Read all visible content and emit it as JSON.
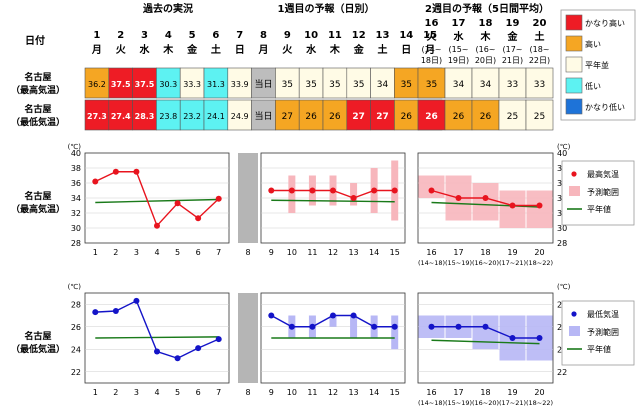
{
  "header": {
    "date_label": "日付",
    "section_past": "過去の実況",
    "section_week1": "1週目の予報（日別）",
    "section_week2": "2週目の予報（5日間平均）"
  },
  "days": [
    {
      "num": "1",
      "dow": "月",
      "color": "#000000"
    },
    {
      "num": "2",
      "dow": "火",
      "color": "#000000"
    },
    {
      "num": "3",
      "dow": "水",
      "color": "#000000"
    },
    {
      "num": "4",
      "dow": "木",
      "color": "#000000"
    },
    {
      "num": "5",
      "dow": "金",
      "color": "#000000"
    },
    {
      "num": "6",
      "dow": "土",
      "color": "#000000"
    },
    {
      "num": "7",
      "dow": "日",
      "color": "#000000"
    },
    {
      "num": "8",
      "dow": "月",
      "color": "#000000"
    },
    {
      "num": "9",
      "dow": "火",
      "color": "#000000"
    },
    {
      "num": "10",
      "dow": "水",
      "color": "#000000"
    },
    {
      "num": "11",
      "dow": "木",
      "color": "#000000"
    },
    {
      "num": "12",
      "dow": "金",
      "color": "#000000"
    },
    {
      "num": "13",
      "dow": "土",
      "color": "#000000"
    },
    {
      "num": "14",
      "dow": "日",
      "color": "#000000"
    },
    {
      "num": "15",
      "dow": "月",
      "color": "#000000"
    }
  ],
  "week2_days": [
    {
      "num": "16",
      "dow": "火",
      "range1": "(14~",
      "range2": "18日)"
    },
    {
      "num": "17",
      "dow": "水",
      "range1": "(15~",
      "range2": "19日)"
    },
    {
      "num": "18",
      "dow": "木",
      "range1": "(16~",
      "range2": "20日)"
    },
    {
      "num": "19",
      "dow": "金",
      "range1": "(17~",
      "range2": "21日)"
    },
    {
      "num": "20",
      "dow": "土",
      "range1": "(18~",
      "range2": "22日)"
    }
  ],
  "rows": [
    {
      "label1": "名古屋",
      "label2": "（最高気温）",
      "cells": [
        {
          "text": "36.2",
          "bg": "#f5a623",
          "bold": false,
          "color": "#000000"
        },
        {
          "text": "37.5",
          "bg": "#ee1c25",
          "bold": true,
          "color": "#ffffff"
        },
        {
          "text": "37.5",
          "bg": "#ee1c25",
          "bold": true,
          "color": "#ffffff"
        },
        {
          "text": "30.3",
          "bg": "#5df2f2",
          "bold": false,
          "color": "#000000"
        },
        {
          "text": "33.3",
          "bg": "#fffbe6",
          "bold": false,
          "color": "#000000"
        },
        {
          "text": "31.3",
          "bg": "#5df2f2",
          "bold": false,
          "color": "#000000"
        },
        {
          "text": "33.9",
          "bg": "#fffbe6",
          "bold": false,
          "color": "#000000"
        },
        {
          "text": "当日",
          "bg": "#bdbdbd",
          "bold": false,
          "color": "#000000"
        },
        {
          "text": "35",
          "bg": "#fffbe6",
          "bold": false,
          "color": "#000000"
        },
        {
          "text": "35",
          "bg": "#fffbe6",
          "bold": false,
          "color": "#000000"
        },
        {
          "text": "35",
          "bg": "#fffbe6",
          "bold": false,
          "color": "#000000"
        },
        {
          "text": "35",
          "bg": "#fffbe6",
          "bold": false,
          "color": "#000000"
        },
        {
          "text": "34",
          "bg": "#fffbe6",
          "bold": false,
          "color": "#000000"
        },
        {
          "text": "35",
          "bg": "#f5a623",
          "bold": false,
          "color": "#000000"
        },
        {
          "text": "35",
          "bg": "#f5a623",
          "bold": false,
          "color": "#000000"
        }
      ],
      "week2": [
        {
          "text": "35",
          "bg": "#f5a623",
          "bold": false,
          "color": "#000000"
        },
        {
          "text": "34",
          "bg": "#fffbe6",
          "bold": false,
          "color": "#000000"
        },
        {
          "text": "34",
          "bg": "#fffbe6",
          "bold": false,
          "color": "#000000"
        },
        {
          "text": "33",
          "bg": "#fffbe6",
          "bold": false,
          "color": "#000000"
        },
        {
          "text": "33",
          "bg": "#fffbe6",
          "bold": false,
          "color": "#000000"
        }
      ]
    },
    {
      "label1": "名古屋",
      "label2": "（最低気温）",
      "cells": [
        {
          "text": "27.3",
          "bg": "#ee1c25",
          "bold": true,
          "color": "#ffffff"
        },
        {
          "text": "27.4",
          "bg": "#ee1c25",
          "bold": true,
          "color": "#ffffff"
        },
        {
          "text": "28.3",
          "bg": "#ee1c25",
          "bold": true,
          "color": "#ffffff"
        },
        {
          "text": "23.8",
          "bg": "#5df2f2",
          "bold": false,
          "color": "#000000"
        },
        {
          "text": "23.2",
          "bg": "#5df2f2",
          "bold": false,
          "color": "#000000"
        },
        {
          "text": "24.1",
          "bg": "#5df2f2",
          "bold": false,
          "color": "#000000"
        },
        {
          "text": "24.9",
          "bg": "#fffbe6",
          "bold": false,
          "color": "#000000"
        },
        {
          "text": "当日",
          "bg": "#bdbdbd",
          "bold": false,
          "color": "#000000"
        },
        {
          "text": "27",
          "bg": "#f5a623",
          "bold": false,
          "color": "#000000"
        },
        {
          "text": "26",
          "bg": "#f5a623",
          "bold": false,
          "color": "#000000"
        },
        {
          "text": "26",
          "bg": "#f5a623",
          "bold": false,
          "color": "#000000"
        },
        {
          "text": "27",
          "bg": "#ee1c25",
          "bold": true,
          "color": "#ffffff"
        },
        {
          "text": "27",
          "bg": "#ee1c25",
          "bold": true,
          "color": "#ffffff"
        },
        {
          "text": "26",
          "bg": "#f5a623",
          "bold": false,
          "color": "#000000"
        },
        {
          "text": "26",
          "bg": "#f5a623",
          "bold": false,
          "color": "#000000"
        }
      ],
      "week2": [
        {
          "text": "26",
          "bg": "#ee1c25",
          "bold": true,
          "color": "#ffffff"
        },
        {
          "text": "26",
          "bg": "#f5a623",
          "bold": false,
          "color": "#000000"
        },
        {
          "text": "26",
          "bg": "#f5a623",
          "bold": false,
          "color": "#000000"
        },
        {
          "text": "25",
          "bg": "#fffbe6",
          "bold": false,
          "color": "#000000"
        },
        {
          "text": "25",
          "bg": "#fffbe6",
          "bold": false,
          "color": "#000000"
        }
      ]
    }
  ],
  "category_legend": [
    {
      "label": "かなり高い",
      "color": "#ee1c25"
    },
    {
      "label": "高い",
      "color": "#f5a623"
    },
    {
      "label": "平年並",
      "color": "#fffbe6"
    },
    {
      "label": "低い",
      "color": "#5df2f2"
    },
    {
      "label": "かなり低い",
      "color": "#1e73d8"
    }
  ],
  "chart_data": [
    {
      "type": "line",
      "label1": "名古屋",
      "label2": "（最高気温）",
      "unit": "(℃)",
      "ylim": [
        28,
        40
      ],
      "yticks": [
        28,
        30,
        32,
        34,
        36,
        38,
        40
      ],
      "color": "#e8141e",
      "band_color": "#f7b6bc",
      "normal_color": "#1a7a1a",
      "past": {
        "x": [
          1,
          2,
          3,
          4,
          5,
          6,
          7
        ],
        "y": [
          36.2,
          37.5,
          37.5,
          30.3,
          33.3,
          31.3,
          33.9
        ]
      },
      "forecast": {
        "x": [
          9,
          10,
          11,
          12,
          13,
          14,
          15
        ],
        "y": [
          35,
          35,
          35,
          35,
          34,
          35,
          35
        ],
        "range": [
          [
            35,
            35
          ],
          [
            32,
            37
          ],
          [
            33,
            37
          ],
          [
            33,
            37
          ],
          [
            33,
            36
          ],
          [
            32,
            38
          ],
          [
            31,
            39
          ]
        ]
      },
      "week2": {
        "x": [
          16,
          17,
          18,
          19,
          20
        ],
        "y": [
          35,
          34,
          34,
          33,
          33
        ],
        "range": [
          [
            34,
            37
          ],
          [
            31,
            37
          ],
          [
            31,
            36
          ],
          [
            30,
            35
          ],
          [
            30,
            35
          ]
        ]
      },
      "normal": {
        "x": [
          1,
          7
        ],
        "y": [
          33.4,
          33.8
        ]
      },
      "normal_w1": {
        "x": [
          9,
          15
        ],
        "y": [
          33.7,
          33.5
        ]
      },
      "normal_w2": {
        "x": [
          16,
          20
        ],
        "y": [
          33.4,
          32.8
        ]
      },
      "legend": [
        "最高気温",
        "予測範囲",
        "平年値"
      ]
    },
    {
      "type": "line",
      "label1": "名古屋",
      "label2": "（最低気温）",
      "unit": "(℃)",
      "ylim": [
        21,
        29
      ],
      "yticks": [
        22,
        24,
        26,
        28
      ],
      "color": "#1414c8",
      "band_color": "#b7b7f5",
      "normal_color": "#1a7a1a",
      "past": {
        "x": [
          1,
          2,
          3,
          4,
          5,
          6,
          7
        ],
        "y": [
          27.3,
          27.4,
          28.3,
          23.8,
          23.2,
          24.1,
          24.9
        ]
      },
      "forecast": {
        "x": [
          9,
          10,
          11,
          12,
          13,
          14,
          15
        ],
        "y": [
          27,
          26,
          26,
          27,
          27,
          26,
          26
        ],
        "range": [
          [
            27,
            27
          ],
          [
            25,
            27
          ],
          [
            25,
            27
          ],
          [
            26,
            27
          ],
          [
            25,
            27
          ],
          [
            25,
            27
          ],
          [
            24,
            27
          ]
        ]
      },
      "week2": {
        "x": [
          16,
          17,
          18,
          19,
          20
        ],
        "y": [
          26,
          26,
          26,
          25,
          25
        ],
        "range": [
          [
            25,
            27
          ],
          [
            25,
            27
          ],
          [
            24,
            27
          ],
          [
            23,
            27
          ],
          [
            23,
            27
          ]
        ]
      },
      "normal": {
        "x": [
          1,
          7
        ],
        "y": [
          25.0,
          25.1
        ]
      },
      "normal_w1": {
        "x": [
          9,
          15
        ],
        "y": [
          25.0,
          25.0
        ]
      },
      "normal_w2": {
        "x": [
          16,
          20
        ],
        "y": [
          24.8,
          24.5
        ]
      },
      "legend": [
        "最低気温",
        "予測範囲",
        "平年値"
      ]
    }
  ]
}
